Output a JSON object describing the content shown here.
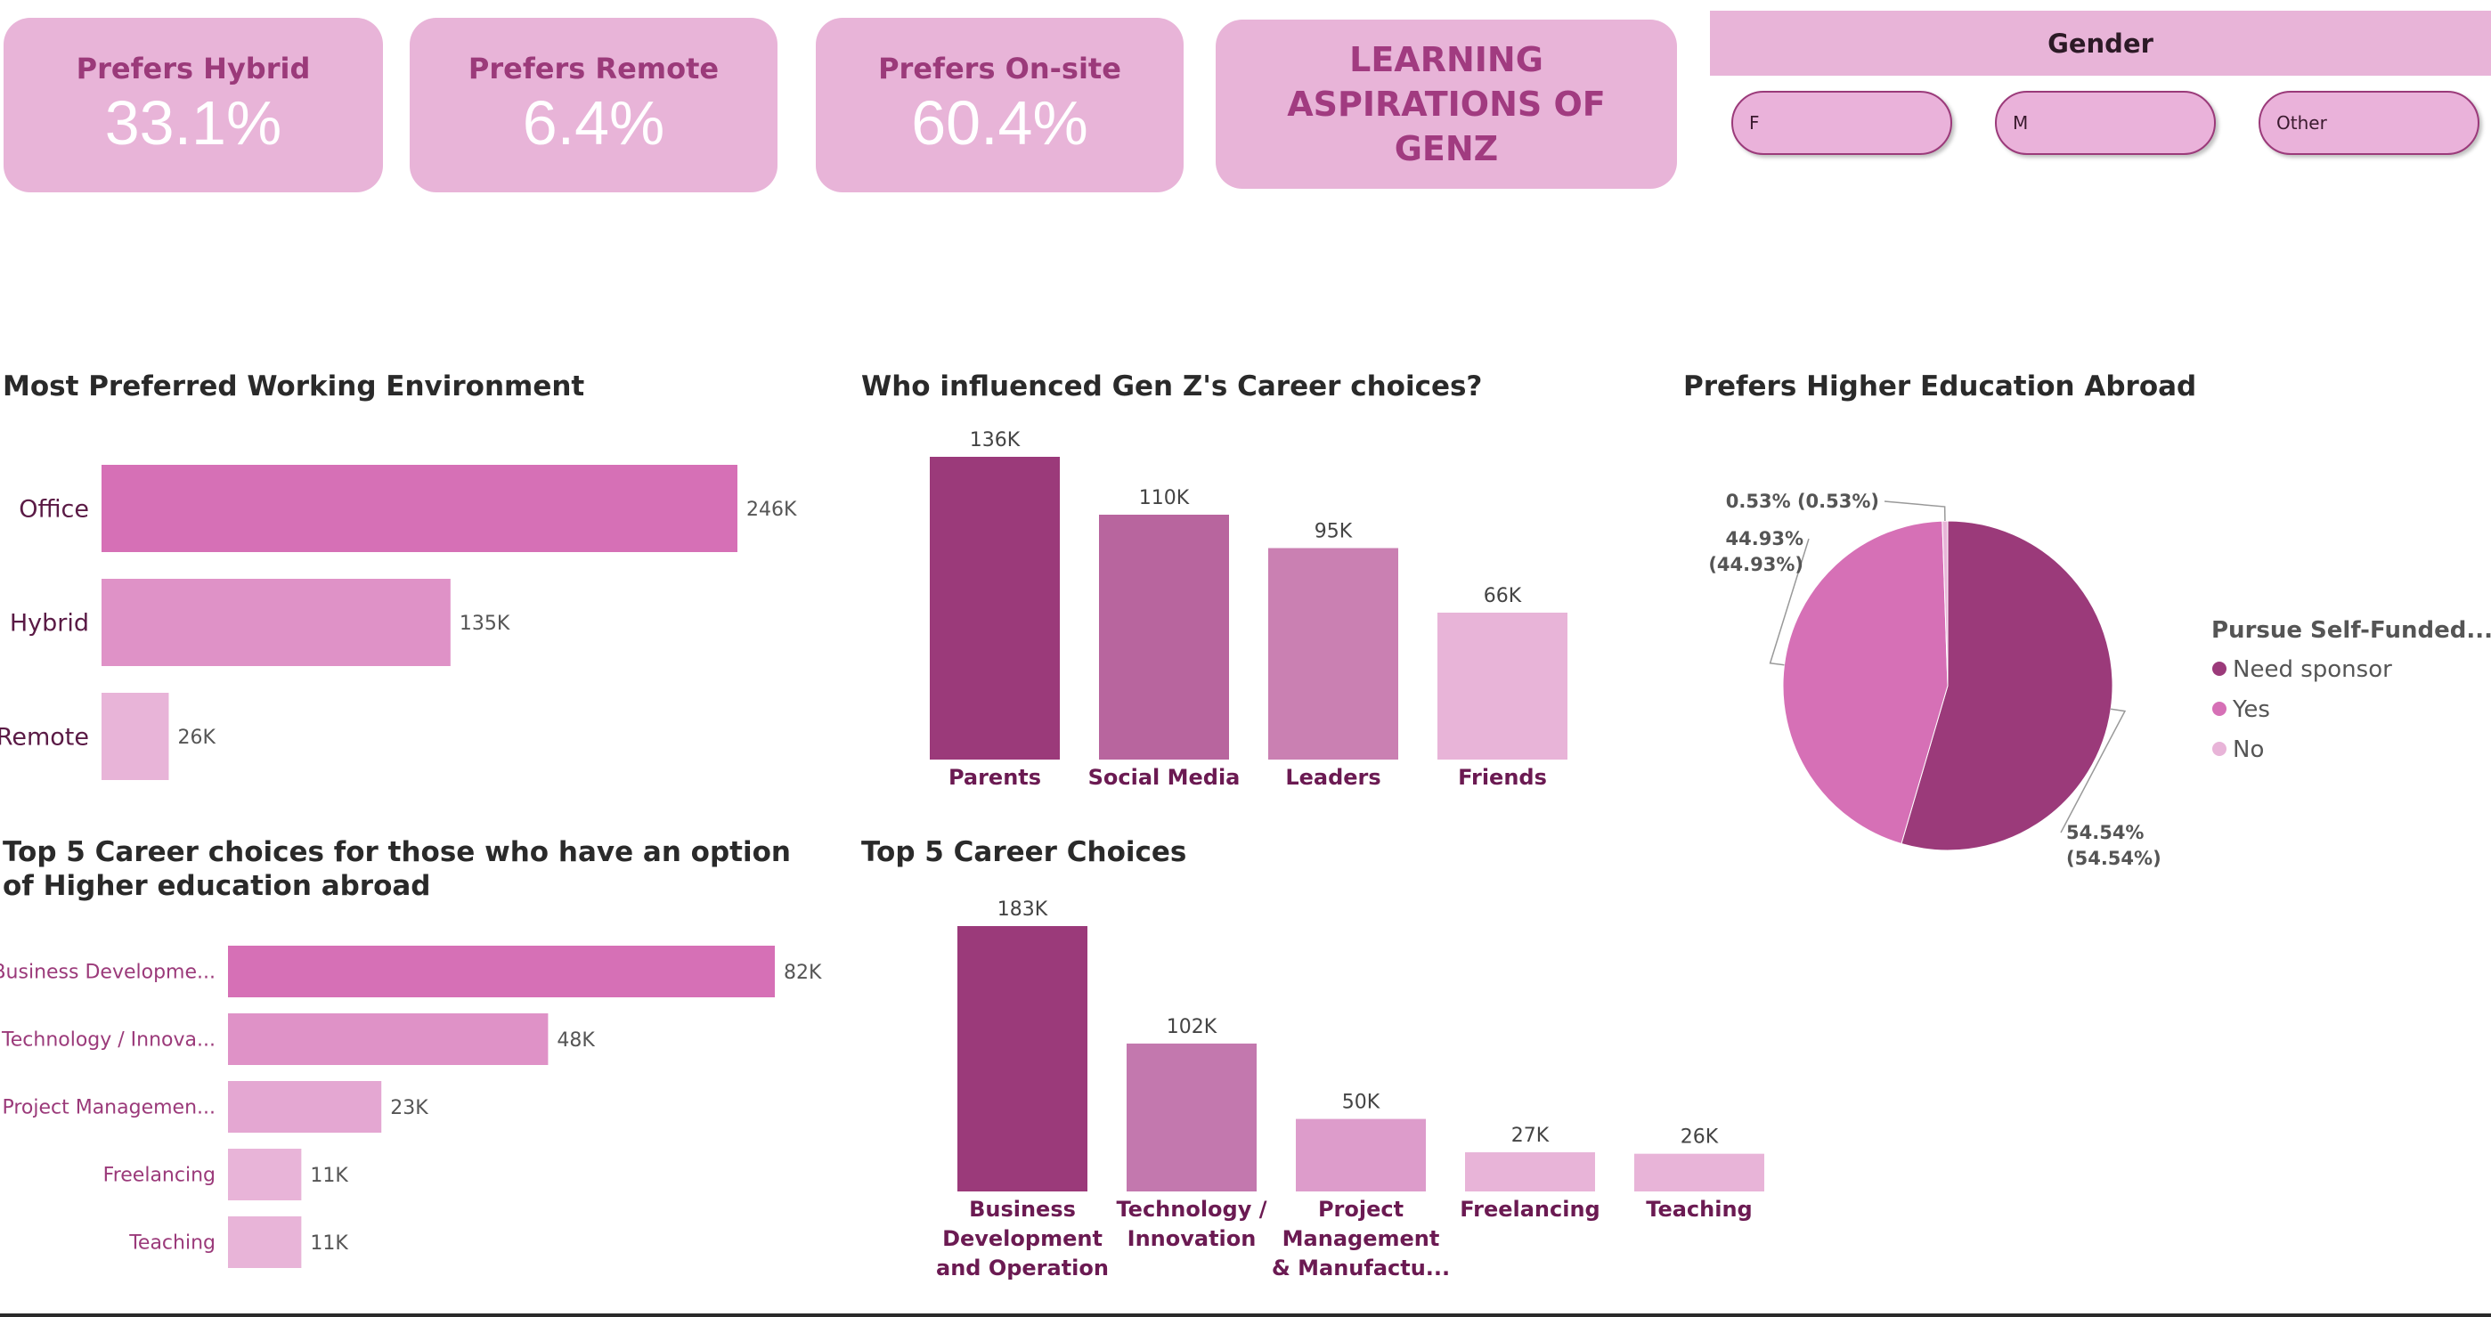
{
  "kpis": [
    {
      "label": "Prefers Hybrid",
      "value": "33.1%"
    },
    {
      "label": "Prefers Remote",
      "value": "6.4%"
    },
    {
      "label": "Prefers On-site",
      "value": "60.4%"
    }
  ],
  "dashboard_title": "LEARNING ASPIRATIONS OF GENZ",
  "slicer": {
    "title": "Gender",
    "options": [
      "F",
      "M",
      "Other"
    ]
  },
  "colors": {
    "card_bg": "#e8b4d8",
    "accent_dark": "#9b3a7a",
    "pink_mid": "#d670b6",
    "pink_light": "#e8b4d8"
  },
  "chart_data": [
    {
      "id": "working_env",
      "type": "bar",
      "orientation": "horizontal",
      "title": "Most Preferred Working Environment",
      "categories": [
        "Office",
        "Hybrid",
        "Remote"
      ],
      "values": [
        246000,
        135000,
        26000
      ],
      "data_labels": [
        "246K",
        "135K",
        "26K"
      ],
      "colors": [
        "#d670b6",
        "#df92c7",
        "#e8b4d8"
      ]
    },
    {
      "id": "influencers",
      "type": "bar",
      "title": "Who influenced Gen Z's Career choices?",
      "categories": [
        "Parents",
        "Social Media",
        "Leaders",
        "Friends"
      ],
      "values": [
        136000,
        110000,
        95000,
        66000
      ],
      "data_labels": [
        "136K",
        "110K",
        "95K",
        "66K"
      ],
      "colors": [
        "#9b3a7a",
        "#b8659e",
        "#ca80b2",
        "#e8b4d8"
      ]
    },
    {
      "id": "higher_ed_abroad",
      "type": "pie",
      "title": "Prefers Higher Education Abroad",
      "legend_title": "Pursue Self-Funded...",
      "legend_position": "right",
      "categories": [
        "Need sponsor",
        "Yes",
        "No"
      ],
      "values": [
        54.54,
        44.93,
        0.53
      ],
      "data_labels": [
        "54.54% (54.54%)",
        "44.93% (44.93%)",
        "0.53% (0.53%)"
      ],
      "colors": [
        "#9b3a7a",
        "#d670b6",
        "#e8b4d8"
      ]
    },
    {
      "id": "careers_abroad",
      "type": "bar",
      "orientation": "horizontal",
      "title": "Top 5 Career choices for those who have an option of Higher education abroad",
      "categories": [
        "Business Developme...",
        "Technology / Innova...",
        "Project Managemen...",
        "Freelancing",
        "Teaching"
      ],
      "values": [
        82000,
        48000,
        23000,
        11000,
        11000
      ],
      "data_labels": [
        "82K",
        "48K",
        "23K",
        "11K",
        "11K"
      ],
      "colors": [
        "#d670b6",
        "#df92c7",
        "#e4a7d2",
        "#e8b4d8",
        "#e8b4d8"
      ]
    },
    {
      "id": "top_careers",
      "type": "bar",
      "title": "Top 5 Career Choices",
      "categories": [
        "Business Development and Operation",
        "Technology / Innovation",
        "Project Management & Manufactu...",
        "Freelancing",
        "Teaching"
      ],
      "category_lines": [
        [
          "Business",
          "Development",
          "and Operation"
        ],
        [
          "Technology /",
          "Innovation"
        ],
        [
          "Project",
          "Management",
          "& Manufactu..."
        ],
        [
          "Freelancing"
        ],
        [
          "Teaching"
        ]
      ],
      "values": [
        183000,
        102000,
        50000,
        27000,
        26000
      ],
      "data_labels": [
        "183K",
        "102K",
        "50K",
        "27K",
        "26K"
      ],
      "colors": [
        "#9b3a7a",
        "#c378ae",
        "#dd9ccb",
        "#e8b4d8",
        "#e8b4d8"
      ]
    }
  ]
}
